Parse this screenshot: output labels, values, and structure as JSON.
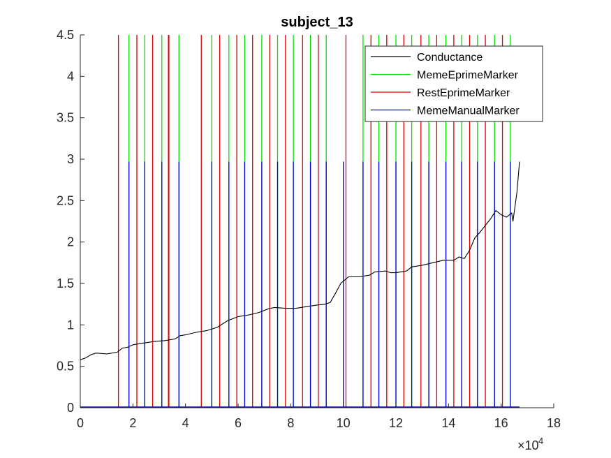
{
  "chart_data": {
    "type": "line",
    "title": "subject_13",
    "xlabel": "",
    "ylabel": "",
    "xlim": [
      0,
      180000
    ],
    "ylim": [
      0,
      4.5
    ],
    "x_exponent_label": "×10",
    "x_exponent_power": "4",
    "x_ticks": [
      0,
      20000,
      40000,
      60000,
      80000,
      100000,
      120000,
      140000,
      160000,
      180000
    ],
    "x_tick_labels": [
      "0",
      "2",
      "4",
      "6",
      "8",
      "10",
      "12",
      "14",
      "16",
      "18"
    ],
    "y_ticks": [
      0,
      0.5,
      1,
      1.5,
      2,
      2.5,
      3,
      3.5,
      4,
      4.5
    ],
    "y_tick_labels": [
      "0",
      "0.5",
      "1",
      "1.5",
      "2",
      "2.5",
      "3",
      "3.5",
      "4",
      "4.5"
    ],
    "grid": false,
    "legend_position": "top-right",
    "series": [
      {
        "name": "Conductance",
        "color": "#000000",
        "kind": "line",
        "x": [
          0,
          2000,
          4000,
          6000,
          10000,
          14000,
          16000,
          18000,
          20000,
          24000,
          28000,
          32000,
          36000,
          38000,
          40000,
          44000,
          48000,
          52000,
          56000,
          60000,
          64000,
          68000,
          72000,
          74000,
          78000,
          82000,
          86000,
          90000,
          93000,
          95000,
          97000,
          99000,
          102000,
          106000,
          110000,
          112000,
          116000,
          118000,
          120000,
          124000,
          126000,
          130000,
          134000,
          138000,
          142000,
          144000,
          146000,
          148000,
          150000,
          152000,
          154000,
          156000,
          158000,
          160000,
          162000,
          164000,
          164500,
          166000,
          167000
        ],
        "y": [
          0.58,
          0.6,
          0.64,
          0.66,
          0.65,
          0.67,
          0.72,
          0.73,
          0.76,
          0.78,
          0.8,
          0.81,
          0.83,
          0.87,
          0.88,
          0.91,
          0.93,
          0.97,
          1.05,
          1.1,
          1.12,
          1.15,
          1.2,
          1.21,
          1.2,
          1.2,
          1.22,
          1.24,
          1.25,
          1.27,
          1.38,
          1.5,
          1.58,
          1.58,
          1.6,
          1.64,
          1.65,
          1.63,
          1.63,
          1.65,
          1.7,
          1.72,
          1.75,
          1.78,
          1.78,
          1.82,
          1.8,
          1.9,
          2.05,
          2.12,
          2.2,
          2.28,
          2.38,
          2.33,
          2.3,
          2.35,
          2.25,
          2.6,
          2.97
        ]
      },
      {
        "name": "MemeEprimeMarker",
        "color": "#00e000",
        "kind": "markers",
        "height": 4.5,
        "x": [
          18500,
          24500,
          31000,
          37500,
          50000,
          56500,
          62500,
          69000,
          75000,
          81000,
          87500,
          93500,
          107500,
          113500,
          120000,
          126000,
          132500,
          139000,
          145000,
          151000,
          157500,
          163500
        ]
      },
      {
        "name": "RestEprimeMarker",
        "color": "#e00000",
        "kind": "markers",
        "height": 4.5,
        "x": [
          14500,
          21500,
          27500,
          33500,
          33700,
          46000,
          53000,
          59500,
          65500,
          72000,
          78000,
          84500,
          90500,
          101000,
          110500,
          116500,
          123000,
          129500,
          135500,
          142000,
          148000,
          154000,
          160500
        ]
      },
      {
        "name": "MemeManualMarker",
        "color": "#0000e0",
        "kind": "markers",
        "height": 2.97,
        "x": [
          18500,
          24500,
          31000,
          37500,
          50000,
          56500,
          62500,
          69000,
          75000,
          81000,
          87500,
          93500,
          100000,
          107500,
          113500,
          120000,
          126000,
          132500,
          139000,
          145000,
          151000,
          157500,
          163500
        ]
      }
    ]
  }
}
